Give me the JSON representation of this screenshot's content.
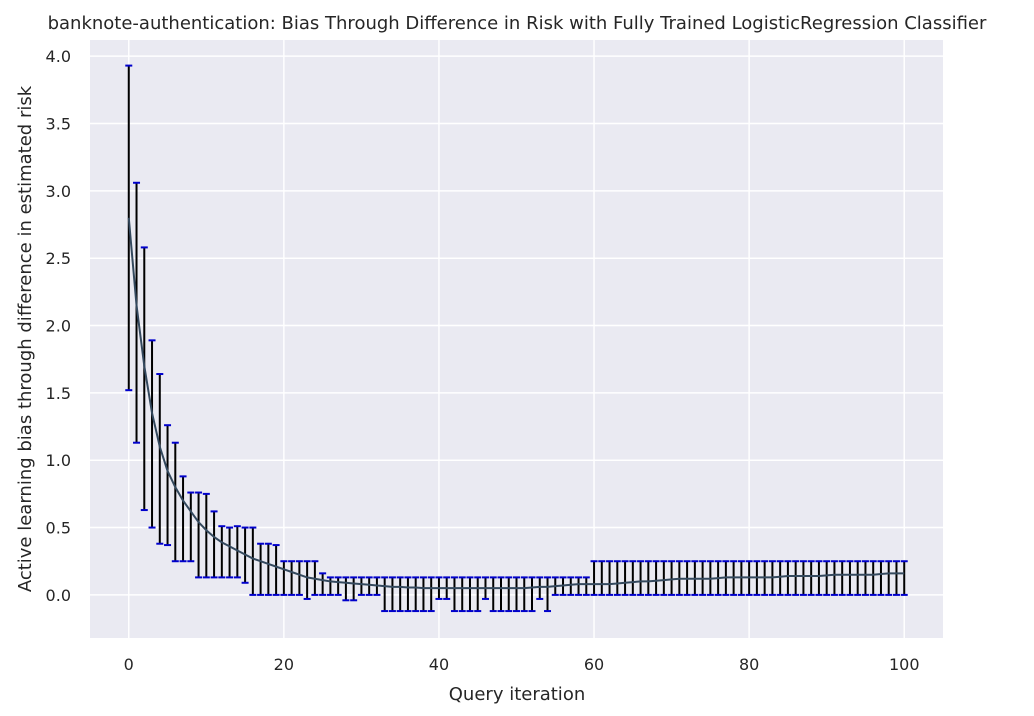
{
  "chart_data": {
    "type": "line",
    "title": "banknote-authentication: Bias Through Difference in Risk with Fully Trained LogisticRegression Classifier",
    "xlabel": "Query iteration",
    "ylabel": "Active learning bias through difference in estimated risk",
    "xlim": [
      -5,
      105
    ],
    "ylim": [
      -0.32,
      4.12
    ],
    "grid": true,
    "legend": "none",
    "x_ticks": [
      "0",
      "20",
      "40",
      "60",
      "80",
      "100"
    ],
    "y_ticks": [
      "0.0",
      "0.5",
      "1.0",
      "1.5",
      "2.0",
      "2.5",
      "3.0",
      "3.5",
      "4.0"
    ],
    "x_tick_values": [
      0,
      20,
      40,
      60,
      80,
      100
    ],
    "y_tick_values": [
      0,
      0.5,
      1.0,
      1.5,
      2.0,
      2.5,
      3.0,
      3.5,
      4.0
    ],
    "colors": {
      "background": "#eaeaf2",
      "grid": "#ffffff",
      "mean_line": "#34495e",
      "error_bar": "#000000",
      "cap": "#0000cc"
    },
    "series": [
      {
        "x": [
          0,
          1,
          2,
          3,
          4,
          5,
          6,
          7,
          8,
          9,
          10,
          11,
          12,
          13,
          14,
          15,
          16,
          17,
          18,
          19,
          20,
          21,
          22,
          23,
          24,
          25,
          26,
          27,
          28,
          29,
          30,
          31,
          32,
          33,
          34,
          35,
          36,
          37,
          38,
          39,
          40,
          41,
          42,
          43,
          44,
          45,
          46,
          47,
          48,
          49,
          50,
          51,
          52,
          53,
          54,
          55,
          56,
          57,
          58,
          59,
          60,
          61,
          62,
          63,
          64,
          65,
          66,
          67,
          68,
          69,
          70,
          71,
          72,
          73,
          74,
          75,
          76,
          77,
          78,
          79,
          80,
          81,
          82,
          83,
          84,
          85,
          86,
          87,
          88,
          89,
          90,
          91,
          92,
          93,
          94,
          95,
          96,
          97,
          98,
          99,
          100
        ],
        "mean": [
          2.8,
          2.15,
          1.7,
          1.35,
          1.1,
          0.92,
          0.8,
          0.7,
          0.62,
          0.54,
          0.48,
          0.43,
          0.39,
          0.36,
          0.33,
          0.3,
          0.27,
          0.25,
          0.23,
          0.21,
          0.19,
          0.17,
          0.15,
          0.13,
          0.12,
          0.11,
          0.1,
          0.095,
          0.09,
          0.085,
          0.08,
          0.075,
          0.07,
          0.065,
          0.06,
          0.06,
          0.055,
          0.055,
          0.05,
          0.05,
          0.05,
          0.05,
          0.05,
          0.05,
          0.05,
          0.05,
          0.05,
          0.05,
          0.05,
          0.05,
          0.05,
          0.05,
          0.055,
          0.06,
          0.06,
          0.065,
          0.07,
          0.075,
          0.08,
          0.08,
          0.08,
          0.08,
          0.08,
          0.085,
          0.09,
          0.095,
          0.1,
          0.1,
          0.105,
          0.11,
          0.115,
          0.12,
          0.12,
          0.12,
          0.12,
          0.12,
          0.125,
          0.13,
          0.13,
          0.13,
          0.13,
          0.13,
          0.13,
          0.13,
          0.135,
          0.14,
          0.14,
          0.14,
          0.14,
          0.14,
          0.145,
          0.15,
          0.15,
          0.15,
          0.15,
          0.15,
          0.15,
          0.155,
          0.16,
          0.16,
          0.16
        ],
        "upper": [
          3.93,
          3.06,
          2.58,
          1.89,
          1.64,
          1.26,
          1.13,
          0.88,
          0.76,
          0.76,
          0.75,
          0.62,
          0.51,
          0.5,
          0.51,
          0.5,
          0.5,
          0.38,
          0.38,
          0.37,
          0.25,
          0.25,
          0.25,
          0.25,
          0.25,
          0.16,
          0.13,
          0.13,
          0.13,
          0.13,
          0.13,
          0.13,
          0.13,
          0.13,
          0.13,
          0.13,
          0.13,
          0.13,
          0.13,
          0.13,
          0.13,
          0.13,
          0.13,
          0.13,
          0.13,
          0.13,
          0.13,
          0.13,
          0.13,
          0.13,
          0.13,
          0.13,
          0.13,
          0.13,
          0.13,
          0.13,
          0.13,
          0.13,
          0.13,
          0.13,
          0.25,
          0.25,
          0.25,
          0.25,
          0.25,
          0.25,
          0.25,
          0.25,
          0.25,
          0.25,
          0.25,
          0.25,
          0.25,
          0.25,
          0.25,
          0.25,
          0.25,
          0.25,
          0.25,
          0.25,
          0.25,
          0.25,
          0.25,
          0.25,
          0.25,
          0.25,
          0.25,
          0.25,
          0.25,
          0.25,
          0.25,
          0.25,
          0.25,
          0.25,
          0.25,
          0.25,
          0.25,
          0.25,
          0.25,
          0.25,
          0.25
        ],
        "lower": [
          1.52,
          1.13,
          0.63,
          0.5,
          0.38,
          0.37,
          0.25,
          0.25,
          0.25,
          0.13,
          0.13,
          0.13,
          0.13,
          0.13,
          0.13,
          0.09,
          0.0,
          0.0,
          0.0,
          0.0,
          0.0,
          0.0,
          0.0,
          -0.03,
          0.0,
          0.0,
          0.0,
          0.0,
          -0.04,
          -0.04,
          0.0,
          0.0,
          0.0,
          -0.12,
          -0.12,
          -0.12,
          -0.12,
          -0.12,
          -0.12,
          -0.12,
          -0.03,
          -0.03,
          -0.12,
          -0.12,
          -0.12,
          -0.12,
          -0.03,
          -0.12,
          -0.12,
          -0.12,
          -0.12,
          -0.12,
          -0.12,
          -0.03,
          -0.12,
          0.0,
          0.0,
          0.0,
          0.0,
          0.0,
          0.0,
          0.0,
          0.0,
          0.0,
          0.0,
          0.0,
          0.0,
          0.0,
          0.0,
          0.0,
          0.0,
          0.0,
          0.0,
          0.0,
          0.0,
          0.0,
          0.0,
          0.0,
          0.0,
          0.0,
          0.0,
          0.0,
          0.0,
          0.0,
          0.0,
          0.0,
          0.0,
          0.0,
          0.0,
          0.0,
          0.0,
          0.0,
          0.0,
          0.0,
          0.0,
          0.0,
          0.0,
          0.0,
          0.0,
          0.0,
          0.0
        ]
      }
    ]
  }
}
